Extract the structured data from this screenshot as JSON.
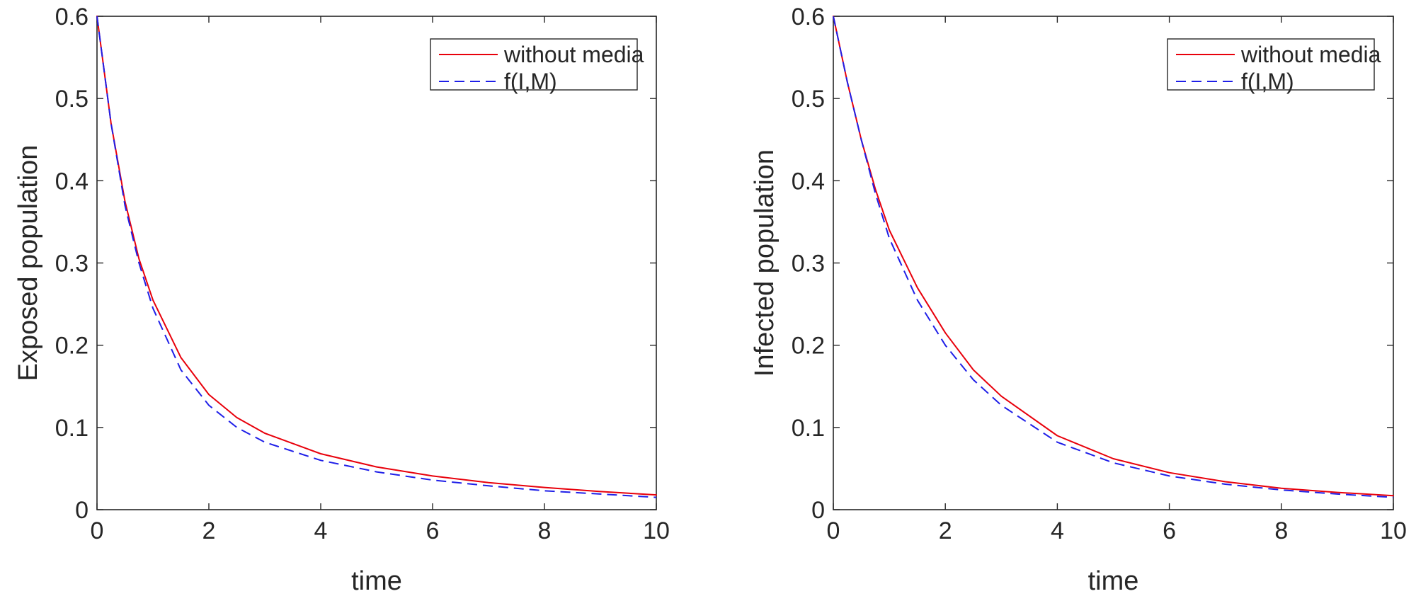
{
  "chart_data": [
    {
      "type": "line",
      "xlabel": "time",
      "ylabel": "Exposed population",
      "xlim": [
        0,
        10
      ],
      "ylim": [
        0,
        0.6
      ],
      "xticks": [
        "0",
        "2",
        "4",
        "6",
        "8",
        "10"
      ],
      "yticks": [
        "0",
        "0.1",
        "0.2",
        "0.3",
        "0.4",
        "0.5",
        "0.6"
      ],
      "grid": false,
      "legend_position": "top-right",
      "series": [
        {
          "name": "without media",
          "color": "#e8000b",
          "style": "solid",
          "x": [
            0,
            0.25,
            0.5,
            0.75,
            1,
            1.5,
            2,
            2.5,
            3,
            4,
            5,
            6,
            7,
            8,
            9,
            10
          ],
          "y": [
            0.6,
            0.47,
            0.375,
            0.305,
            0.255,
            0.185,
            0.14,
            0.112,
            0.093,
            0.068,
            0.052,
            0.041,
            0.033,
            0.027,
            0.022,
            0.018
          ]
        },
        {
          "name": "f(I,M)",
          "color": "#1f1fe8",
          "style": "dashed",
          "x": [
            0,
            0.25,
            0.5,
            0.75,
            1,
            1.5,
            2,
            2.5,
            3,
            4,
            5,
            6,
            7,
            8,
            9,
            10
          ],
          "y": [
            0.6,
            0.47,
            0.37,
            0.3,
            0.245,
            0.17,
            0.127,
            0.1,
            0.082,
            0.06,
            0.046,
            0.036,
            0.029,
            0.023,
            0.019,
            0.015
          ]
        }
      ]
    },
    {
      "type": "line",
      "xlabel": "time",
      "ylabel": "Infected population",
      "xlim": [
        0,
        10
      ],
      "ylim": [
        0,
        0.6
      ],
      "xticks": [
        "0",
        "2",
        "4",
        "6",
        "8",
        "10"
      ],
      "yticks": [
        "0",
        "0.1",
        "0.2",
        "0.3",
        "0.4",
        "0.5",
        "0.6"
      ],
      "grid": false,
      "legend_position": "top-right",
      "series": [
        {
          "name": "without media",
          "color": "#e8000b",
          "style": "solid",
          "x": [
            0,
            0.25,
            0.5,
            0.75,
            1,
            1.5,
            2,
            2.5,
            3,
            4,
            5,
            6,
            7,
            8,
            9,
            10
          ],
          "y": [
            0.6,
            0.52,
            0.45,
            0.39,
            0.34,
            0.27,
            0.215,
            0.17,
            0.138,
            0.09,
            0.062,
            0.045,
            0.034,
            0.026,
            0.021,
            0.017
          ]
        },
        {
          "name": "f(I,M)",
          "color": "#1f1fe8",
          "style": "dashed",
          "x": [
            0,
            0.25,
            0.5,
            0.75,
            1,
            1.5,
            2,
            2.5,
            3,
            4,
            5,
            6,
            7,
            8,
            9,
            10
          ],
          "y": [
            0.6,
            0.52,
            0.45,
            0.385,
            0.33,
            0.255,
            0.2,
            0.158,
            0.127,
            0.082,
            0.057,
            0.041,
            0.031,
            0.024,
            0.019,
            0.015
          ]
        }
      ]
    }
  ]
}
